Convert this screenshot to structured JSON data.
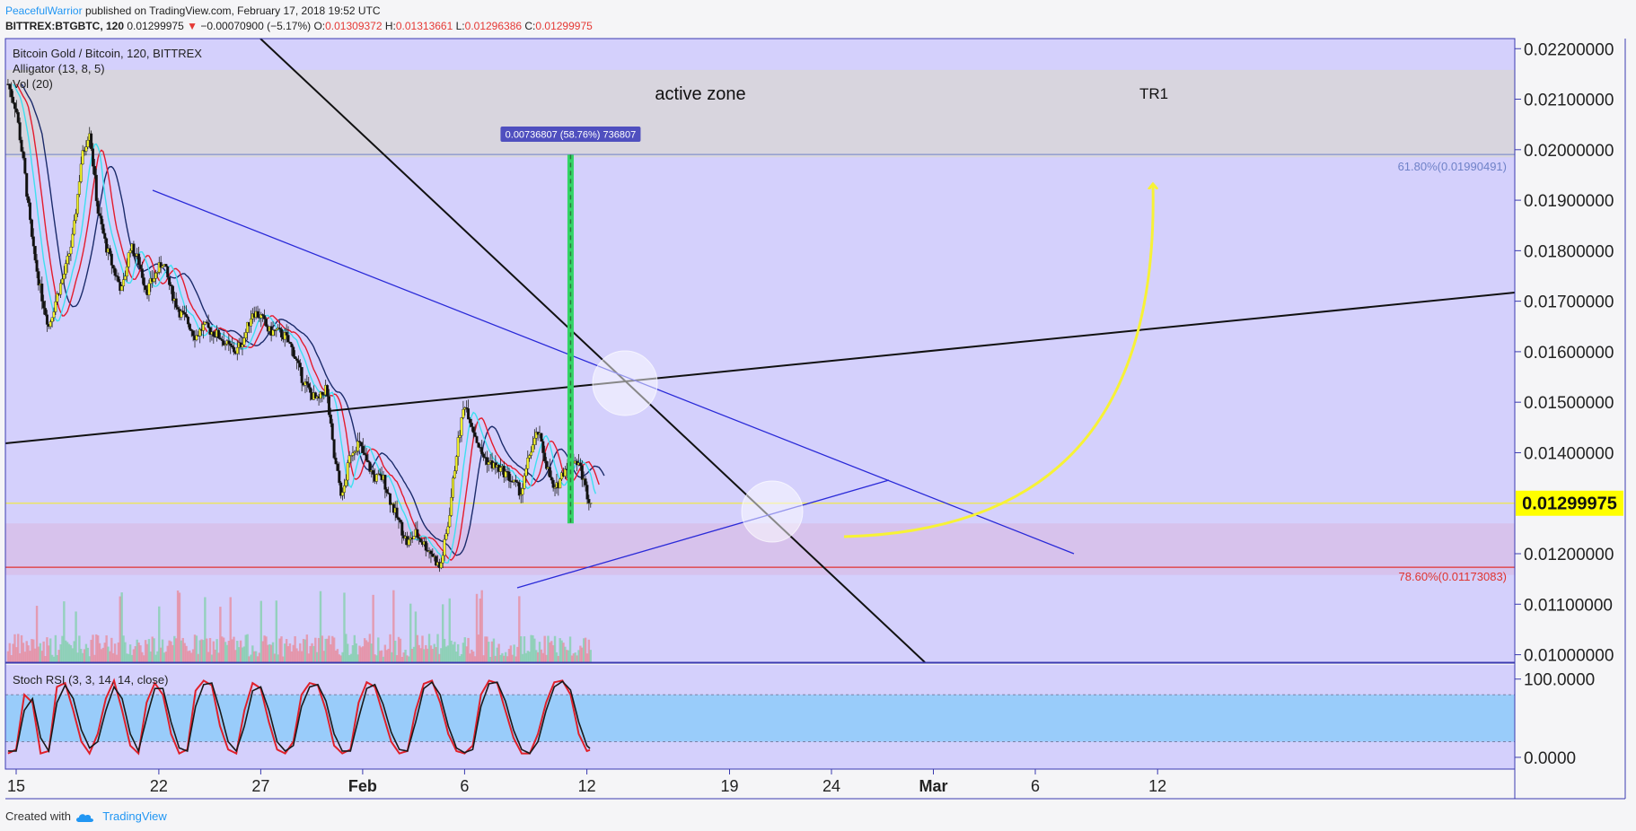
{
  "header": {
    "author": "PeacefulWarrior",
    "published": "published on TradingView.com, February 17, 2018 19:52 UTC",
    "symbol": "BITTREX:BTGBTC, 120",
    "last": "0.01299975",
    "change_arrow": "▼",
    "change": "−0.00070900 (−5.17%)",
    "o_label": "O:",
    "o": "0.01309372",
    "h_label": "H:",
    "h": "0.01313661",
    "l_label": "L:",
    "l": "0.01296386",
    "c_label": "C:",
    "c": "0.01299975"
  },
  "footer": {
    "created_with": "Created with",
    "brand": "TradingView",
    "icon": "tradingview-cloud-icon"
  },
  "colors": {
    "background": "#d4d0fc",
    "resistance_zone": "#d8d5dc",
    "support_zone": "#d7c2ec",
    "candle_up": "#f5f52a",
    "candle_down": "#101010",
    "jaw": "#1b2b6a",
    "teeth": "#e41b2c",
    "lips": "#3ee0f0",
    "trendline": "#2a2ad8",
    "arrow": "#f7f236",
    "target_bar": "#34d466",
    "price_label_bg": "#ffff00",
    "stoch_band": "#99ccfa",
    "fib_618": "#6f82c8",
    "fib_786": "#e0332f"
  },
  "chart_data": [
    {
      "type": "line",
      "legend": [
        "Bitcoin Gold / Bitcoin, 120, BITTREX",
        "Alligator (13, 8, 5)",
        "Vol (20)"
      ],
      "y_ticks": [
        "0.02200000",
        "0.02100000",
        "0.02000000",
        "0.01900000",
        "0.01800000",
        "0.01700000",
        "0.01600000",
        "0.01500000",
        "0.01400000",
        "0.01200000",
        "0.01100000",
        "0.01000000"
      ],
      "ylim": [
        0.00985,
        0.0222
      ],
      "x_ticks": [
        "15",
        "22",
        "27",
        "Feb",
        "6",
        "12",
        "19",
        "24",
        "Mar",
        "6",
        "12"
      ],
      "last_price": "0.01299975",
      "last_price_value": 0.01299975,
      "x_range_days": [
        14.6,
        43.2
      ],
      "series": [
        {
          "name": "price",
          "x_days": [
            14.6,
            15.0,
            15.4,
            15.8,
            16.2,
            16.6,
            17.0,
            17.4,
            17.8,
            18.2,
            18.6,
            19.0,
            19.4,
            19.8,
            20.2,
            20.6,
            21.0,
            21.4,
            21.8,
            22.2,
            22.6,
            23.0,
            23.4,
            23.8,
            24.2,
            24.6,
            25.0,
            25.4,
            25.8,
            26.2,
            26.6,
            27.0,
            27.4,
            27.8,
            28.2,
            28.6,
            29.0,
            29.4,
            29.8,
            30.2,
            30.6,
            31.0,
            31.4,
            31.8,
            32.2,
            32.6,
            33.0,
            33.4,
            33.8,
            34.2,
            34.6,
            35.0,
            35.4,
            35.8,
            36.2,
            36.6,
            37.0,
            37.4,
            37.8,
            38.2,
            38.6,
            39.0,
            39.4,
            39.8,
            40.2,
            40.6,
            41.0,
            41.4,
            41.8,
            42.2,
            42.6,
            43.0,
            43.2
          ],
          "values": [
            0.0213,
            0.0208,
            0.0196,
            0.0181,
            0.0172,
            0.0165,
            0.0171,
            0.0176,
            0.0183,
            0.0198,
            0.0204,
            0.0188,
            0.0181,
            0.0176,
            0.0172,
            0.0181,
            0.0178,
            0.0172,
            0.0175,
            0.0178,
            0.0172,
            0.0168,
            0.0166,
            0.0163,
            0.0165,
            0.0164,
            0.0163,
            0.0161,
            0.016,
            0.0163,
            0.0168,
            0.0167,
            0.0164,
            0.0164,
            0.0163,
            0.016,
            0.0155,
            0.0152,
            0.015,
            0.0153,
            0.0139,
            0.0131,
            0.014,
            0.0142,
            0.0138,
            0.0135,
            0.0135,
            0.013,
            0.0126,
            0.0122,
            0.0124,
            0.0122,
            0.012,
            0.0117,
            0.0126,
            0.014,
            0.015,
            0.0145,
            0.014,
            0.0138,
            0.0137,
            0.0136,
            0.0134,
            0.0132,
            0.014,
            0.0144,
            0.0138,
            0.0132,
            0.0136,
            0.0139,
            0.0138,
            0.0132,
            0.013
          ]
        }
      ],
      "annotations": {
        "active_zone_label": "active zone",
        "tr_label": "TR1",
        "active_zone_range": [
          0.01985,
          0.02158
        ],
        "support_zone_range": [
          0.01158,
          0.0126
        ],
        "fib_618_label": "61.80%(0.01990491)",
        "fib_618_value": 0.01990491,
        "fib_786_label": "78.60%(0.01173083)",
        "fib_786_value": 0.01173083,
        "measure_label": "0.00736807 (58.76%) 736807",
        "measure_range": [
          0.0126,
          0.0199
        ],
        "measure_day": 42.2
      }
    },
    {
      "type": "line",
      "title": "Stoch RSI (3, 3, 14, 14, close)",
      "y_ticks": [
        "100.0000",
        "0.0000"
      ],
      "ylim": [
        -15,
        118
      ],
      "band": [
        20,
        80
      ],
      "x_range_days": [
        14.6,
        43.2
      ],
      "series": [
        {
          "name": "%K",
          "x_days": [
            14.6,
            15.0,
            15.4,
            15.8,
            16.2,
            16.6,
            17.0,
            17.4,
            17.8,
            18.2,
            18.6,
            19.0,
            19.4,
            19.8,
            20.2,
            20.6,
            21.0,
            21.4,
            21.8,
            22.2,
            22.6,
            23.0,
            23.4,
            23.8,
            24.2,
            24.6,
            25.0,
            25.4,
            25.8,
            26.2,
            26.6,
            27.0,
            27.4,
            27.8,
            28.2,
            28.6,
            29.0,
            29.4,
            29.8,
            30.2,
            30.6,
            31.0,
            31.4,
            31.8,
            32.2,
            32.6,
            33.0,
            33.4,
            33.8,
            34.2,
            34.6,
            35.0,
            35.4,
            35.8,
            36.2,
            36.6,
            37.0,
            37.4,
            37.8,
            38.2,
            38.6,
            39.0,
            39.4,
            39.8,
            40.2,
            40.6,
            41.0,
            41.4,
            41.8,
            42.2,
            42.6,
            43.0,
            43.2
          ],
          "values": [
            5,
            10,
            80,
            70,
            5,
            8,
            90,
            95,
            60,
            20,
            5,
            30,
            75,
            98,
            60,
            15,
            5,
            70,
            95,
            80,
            30,
            5,
            10,
            85,
            98,
            92,
            40,
            10,
            5,
            60,
            95,
            88,
            45,
            10,
            5,
            20,
            80,
            95,
            92,
            60,
            15,
            5,
            10,
            70,
            96,
            90,
            55,
            20,
            5,
            8,
            60,
            94,
            98,
            70,
            30,
            8,
            5,
            15,
            80,
            98,
            95,
            60,
            25,
            5,
            5,
            30,
            70,
            96,
            98,
            80,
            30,
            8,
            10
          ]
        },
        {
          "name": "%D",
          "x_days": [
            14.6,
            15.0,
            15.4,
            15.8,
            16.2,
            16.6,
            17.0,
            17.4,
            17.8,
            18.2,
            18.6,
            19.0,
            19.4,
            19.8,
            20.2,
            20.6,
            21.0,
            21.4,
            21.8,
            22.2,
            22.6,
            23.0,
            23.4,
            23.8,
            24.2,
            24.6,
            25.0,
            25.4,
            25.8,
            26.2,
            26.6,
            27.0,
            27.4,
            27.8,
            28.2,
            28.6,
            29.0,
            29.4,
            29.8,
            30.2,
            30.6,
            31.0,
            31.4,
            31.8,
            32.2,
            32.6,
            33.0,
            33.4,
            33.8,
            34.2,
            34.6,
            35.0,
            35.4,
            35.8,
            36.2,
            36.6,
            37.0,
            37.4,
            37.8,
            38.2,
            38.6,
            39.0,
            39.4,
            39.8,
            40.2,
            40.6,
            41.0,
            41.4,
            41.8,
            42.2,
            42.6,
            43.0,
            43.2
          ],
          "values": [
            8,
            8,
            60,
            75,
            25,
            8,
            70,
            92,
            75,
            35,
            12,
            20,
            60,
            90,
            75,
            30,
            8,
            50,
            88,
            88,
            45,
            12,
            8,
            65,
            93,
            95,
            60,
            20,
            8,
            40,
            85,
            90,
            60,
            20,
            8,
            15,
            65,
            90,
            93,
            72,
            30,
            8,
            8,
            50,
            88,
            93,
            68,
            32,
            10,
            8,
            45,
            88,
            96,
            80,
            40,
            12,
            6,
            10,
            65,
            94,
            96,
            72,
            35,
            10,
            5,
            20,
            60,
            90,
            97,
            86,
            45,
            15,
            10
          ]
        }
      ]
    }
  ]
}
